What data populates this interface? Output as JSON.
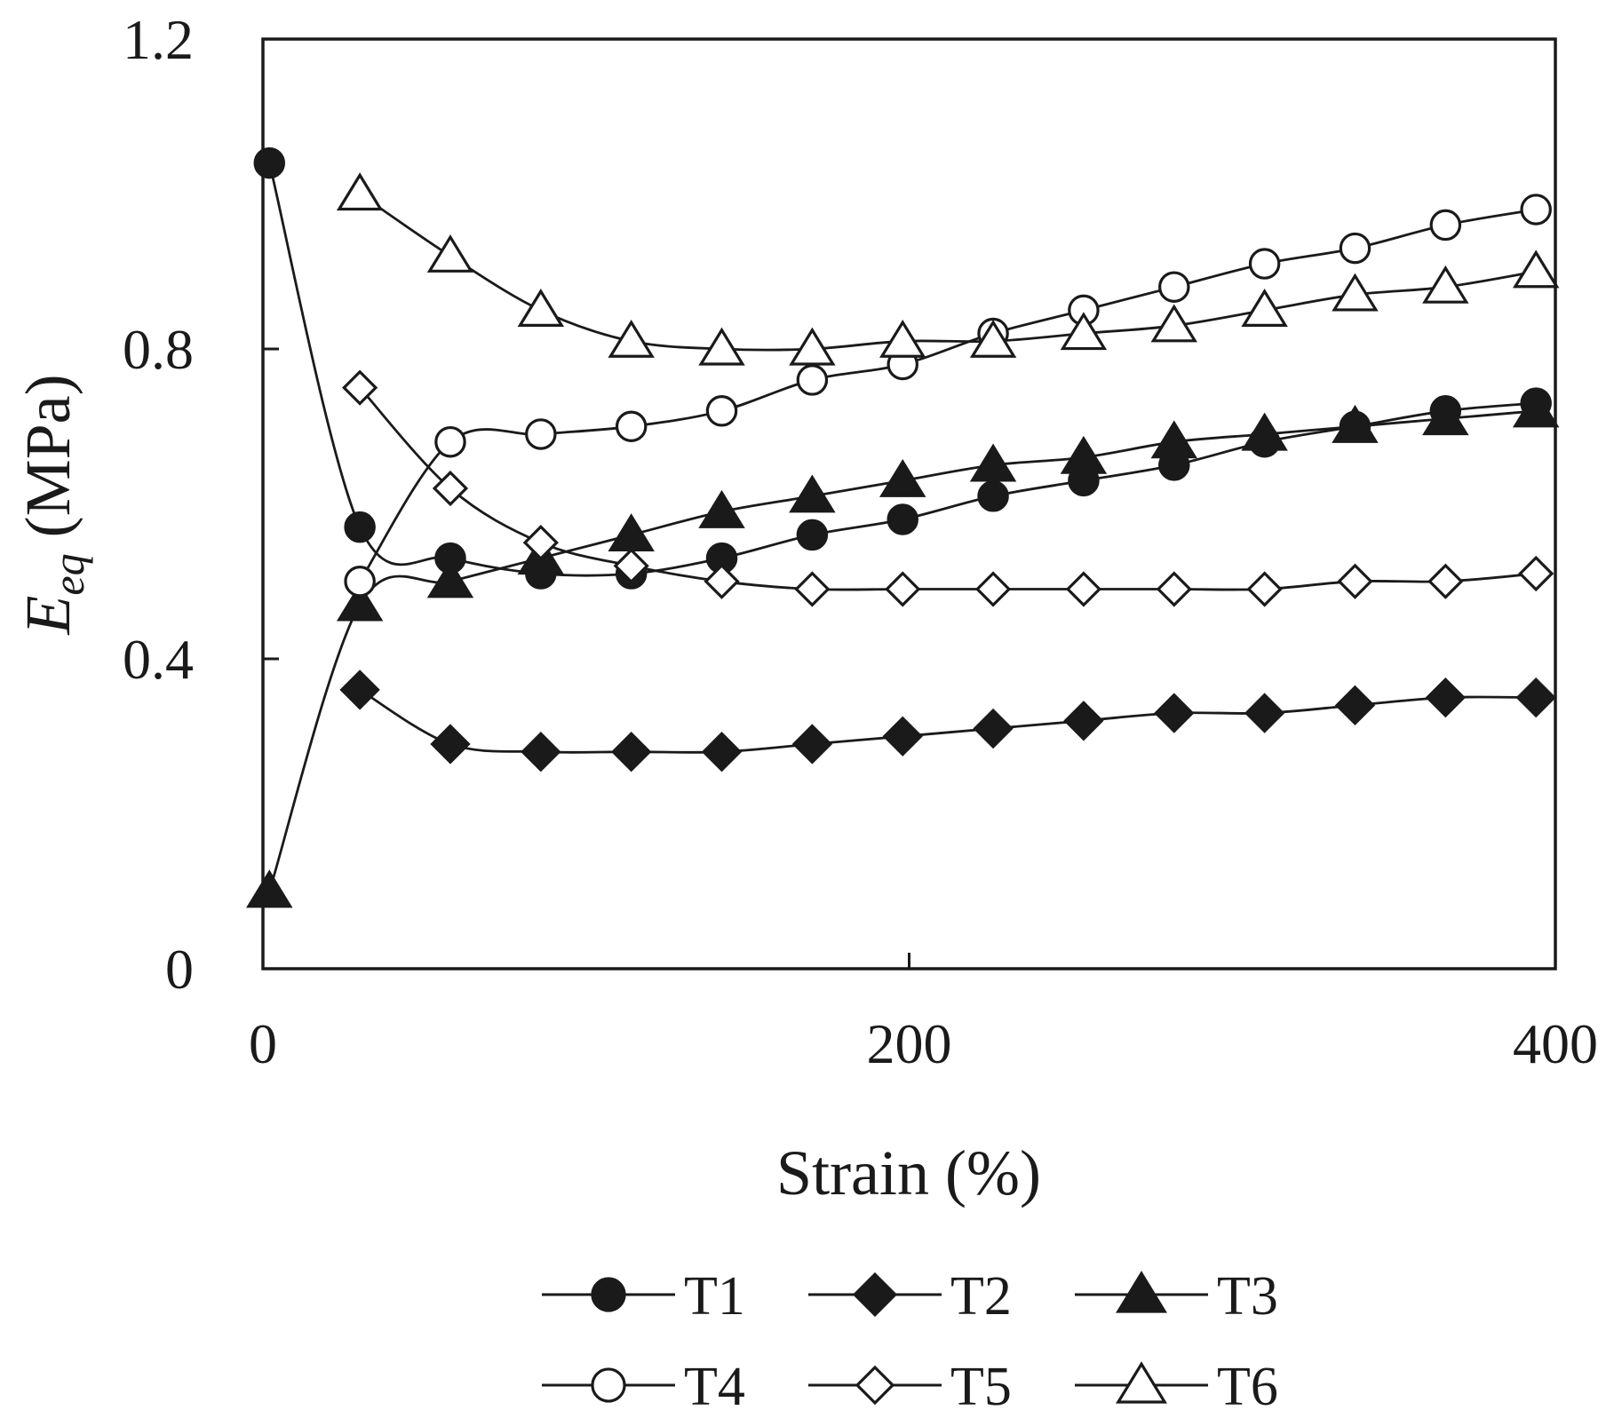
{
  "chart_data": {
    "type": "line",
    "xlabel": "Strain (%)",
    "ylabel_main": "E",
    "ylabel_sub": "eq",
    "ylabel_unit": " (MPa)",
    "xlim": [
      0,
      400
    ],
    "ylim": [
      0,
      1.2
    ],
    "xticks": [
      0,
      200,
      400
    ],
    "xtick_labels": [
      "0",
      "200",
      "400"
    ],
    "yticks": [
      0,
      0.4,
      0.8,
      1.2
    ],
    "ytick_labels": [
      "0",
      "0.4",
      "0.8",
      "1.2"
    ],
    "grid": false,
    "legend_position": "bottom",
    "x": [
      2,
      30,
      58,
      86,
      114,
      142,
      170,
      198,
      226,
      254,
      282,
      310,
      338,
      366,
      394
    ],
    "series": [
      {
        "name": "T1",
        "marker": "circle",
        "fill": "filled",
        "values": [
          1.04,
          0.57,
          0.53,
          0.51,
          0.51,
          0.53,
          0.56,
          0.58,
          0.61,
          0.63,
          0.65,
          0.68,
          0.7,
          0.72,
          0.73
        ]
      },
      {
        "name": "T2",
        "marker": "diamond",
        "fill": "filled",
        "values": [
          null,
          0.36,
          0.29,
          0.28,
          0.28,
          0.28,
          0.29,
          0.3,
          0.31,
          0.32,
          0.33,
          0.33,
          0.34,
          0.35,
          0.35
        ]
      },
      {
        "name": "T3",
        "marker": "triangle",
        "fill": "filled",
        "values": [
          0.1,
          0.47,
          0.5,
          0.53,
          0.56,
          0.59,
          0.61,
          0.63,
          0.65,
          0.66,
          0.68,
          0.69,
          0.7,
          0.71,
          0.72
        ]
      },
      {
        "name": "T4",
        "marker": "circle",
        "fill": "open",
        "values": [
          null,
          0.5,
          0.68,
          0.69,
          0.7,
          0.72,
          0.76,
          0.78,
          0.82,
          0.85,
          0.88,
          0.91,
          0.93,
          0.96,
          0.98
        ]
      },
      {
        "name": "T5",
        "marker": "diamond",
        "fill": "open",
        "values": [
          null,
          0.75,
          0.62,
          0.55,
          0.52,
          0.5,
          0.49,
          0.49,
          0.49,
          0.49,
          0.49,
          0.49,
          0.5,
          0.5,
          0.51
        ]
      },
      {
        "name": "T6",
        "marker": "triangle",
        "fill": "open",
        "values": [
          null,
          1.0,
          0.92,
          0.85,
          0.81,
          0.8,
          0.8,
          0.81,
          0.81,
          0.82,
          0.83,
          0.85,
          0.87,
          0.88,
          0.9
        ]
      }
    ]
  }
}
